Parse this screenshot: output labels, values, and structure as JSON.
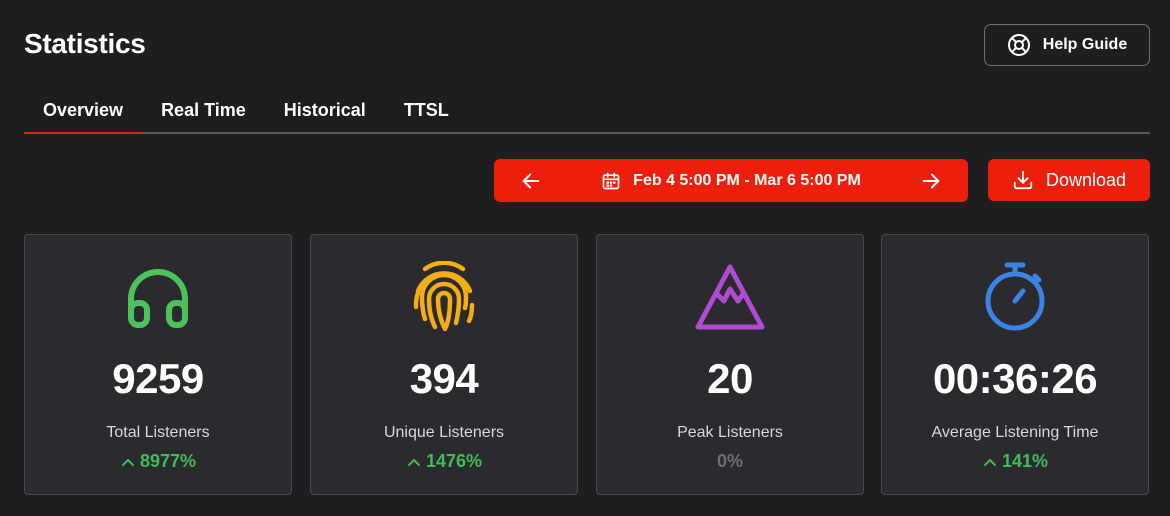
{
  "header": {
    "title": "Statistics",
    "help_label": "Help Guide"
  },
  "tabs": [
    {
      "label": "Overview",
      "active": true
    },
    {
      "label": "Real Time",
      "active": false
    },
    {
      "label": "Historical",
      "active": false
    },
    {
      "label": "TTSL",
      "active": false
    }
  ],
  "toolbar": {
    "date_range": "Feb 4 5:00 PM - Mar 6 5:00 PM",
    "download_label": "Download"
  },
  "colors": {
    "accent": "#eb1f0c",
    "background": "#1e1e21",
    "card": "#2a2a2f",
    "positive": "#3fbd58",
    "neutral": "#6d6f78"
  },
  "cards": [
    {
      "icon": "headphones-icon",
      "icon_color": "#4cc15c",
      "value": "9259",
      "label": "Total Listeners",
      "change": "8977%",
      "trend": "up"
    },
    {
      "icon": "fingerprint-icon",
      "icon_color": "#f3ad16",
      "value": "394",
      "label": "Unique Listeners",
      "change": "1476%",
      "trend": "up"
    },
    {
      "icon": "mountain-icon",
      "icon_color": "#b04bd2",
      "value": "20",
      "label": "Peak Listeners",
      "change": "0%",
      "trend": "flat"
    },
    {
      "icon": "stopwatch-icon",
      "icon_color": "#3a84e6",
      "value": "00:36:26",
      "label": "Average Listening Time",
      "change": "141%",
      "trend": "up"
    }
  ]
}
